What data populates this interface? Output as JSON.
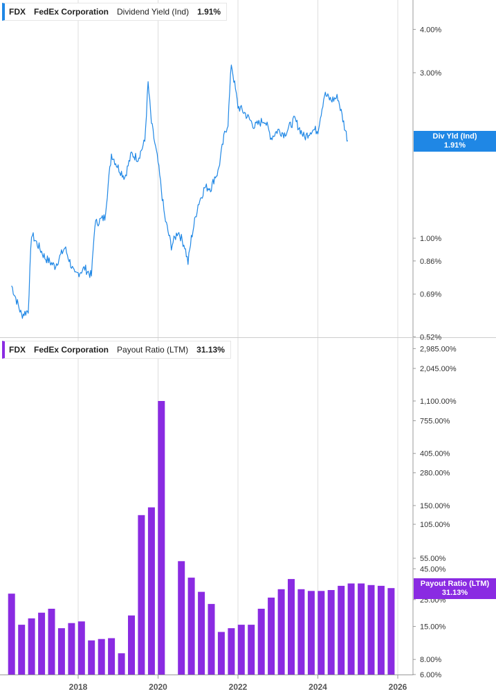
{
  "colors": {
    "line": "#1f87e5",
    "bar": "#8a2be2",
    "axis": "#999999",
    "grid": "#dddddd"
  },
  "top_panel": {
    "legend": {
      "ticker": "FDX",
      "company": "FedEx Corporation",
      "metric": "Dividend Yield (Ind)",
      "value": "1.91%"
    },
    "badge": {
      "label": "Div Yld (Ind)",
      "value": "1.91%"
    }
  },
  "bottom_panel": {
    "legend": {
      "ticker": "FDX",
      "company": "FedEx Corporation",
      "metric": "Payout Ratio (LTM)",
      "value": "31.13%"
    },
    "badge": {
      "label": "Payout Ratio (LTM)",
      "value": "31.13%"
    }
  },
  "chart_data": [
    {
      "type": "line",
      "title": "FDX FedEx Corporation Dividend Yield (Ind)",
      "scale": "log",
      "ylim": [
        0.52,
        5.0
      ],
      "y_ticks": [
        {
          "value": 4.0,
          "label": "4.00%"
        },
        {
          "value": 3.0,
          "label": "3.00%"
        },
        {
          "value": 1.0,
          "label": "1.00%"
        },
        {
          "value": 0.86,
          "label": "0.86%"
        },
        {
          "value": 0.69,
          "label": "0.69%"
        },
        {
          "value": 0.52,
          "label": "0.52%"
        }
      ],
      "xlim": [
        "2016-05",
        "2026-05"
      ],
      "x_ticks": [
        "2018",
        "2020",
        "2022",
        "2024",
        "2026"
      ],
      "series": [
        {
          "name": "Dividend Yield (Ind)",
          "points": [
            [
              "2016-05",
              0.73
            ],
            [
              "2016-08",
              0.6
            ],
            [
              "2016-10",
              0.62
            ],
            [
              "2016-11",
              1.03
            ],
            [
              "2017-03",
              0.88
            ],
            [
              "2017-06",
              0.83
            ],
            [
              "2017-09",
              0.94
            ],
            [
              "2017-12",
              0.78
            ],
            [
              "2018-03",
              0.82
            ],
            [
              "2018-05",
              0.78
            ],
            [
              "2018-06",
              1.1
            ],
            [
              "2018-09",
              1.15
            ],
            [
              "2018-11",
              1.75
            ],
            [
              "2019-01",
              1.6
            ],
            [
              "2019-03",
              1.5
            ],
            [
              "2019-05",
              1.75
            ],
            [
              "2019-07",
              1.7
            ],
            [
              "2019-09",
              1.9
            ],
            [
              "2019-10",
              2.8
            ],
            [
              "2019-11",
              2.15
            ],
            [
              "2020-01",
              1.65
            ],
            [
              "2020-03",
              1.15
            ],
            [
              "2020-05",
              0.95
            ],
            [
              "2020-07",
              1.05
            ],
            [
              "2020-09",
              0.95
            ],
            [
              "2020-10",
              0.85
            ],
            [
              "2020-11",
              1.0
            ],
            [
              "2021-01",
              1.25
            ],
            [
              "2021-03",
              1.4
            ],
            [
              "2021-05",
              1.4
            ],
            [
              "2021-06",
              1.5
            ],
            [
              "2021-07",
              1.55
            ],
            [
              "2021-09",
              2.0
            ],
            [
              "2021-10",
              2.15
            ],
            [
              "2021-11",
              3.2
            ],
            [
              "2022-01",
              2.4
            ],
            [
              "2022-03",
              2.3
            ],
            [
              "2022-06",
              2.1
            ],
            [
              "2022-09",
              2.2
            ],
            [
              "2022-11",
              1.95
            ],
            [
              "2023-01",
              2.05
            ],
            [
              "2023-03",
              2.0
            ],
            [
              "2023-06",
              2.2
            ],
            [
              "2023-09",
              1.95
            ],
            [
              "2023-11",
              2.05
            ],
            [
              "2024-01",
              2.05
            ],
            [
              "2024-03",
              2.6
            ],
            [
              "2024-05",
              2.5
            ],
            [
              "2024-07",
              2.55
            ],
            [
              "2024-09",
              2.1
            ],
            [
              "2024-10",
              1.91
            ]
          ]
        }
      ]
    },
    {
      "type": "bar",
      "title": "FDX FedEx Corporation Payout Ratio (LTM)",
      "scale": "log",
      "ylim": [
        6.0,
        3500.0
      ],
      "y_ticks": [
        {
          "value": 2985.0,
          "label": "2,985.00%"
        },
        {
          "value": 2045.0,
          "label": "2,045.00%"
        },
        {
          "value": 1100.0,
          "label": "1,100.00%"
        },
        {
          "value": 755.0,
          "label": "755.00%"
        },
        {
          "value": 405.0,
          "label": "405.00%"
        },
        {
          "value": 280.0,
          "label": "280.00%"
        },
        {
          "value": 150.0,
          "label": "150.00%"
        },
        {
          "value": 105.0,
          "label": "105.00%"
        },
        {
          "value": 55.0,
          "label": "55.00%"
        },
        {
          "value": 45.0,
          "label": "45.00%"
        },
        {
          "value": 25.0,
          "label": "25.00%"
        },
        {
          "value": 15.0,
          "label": "15.00%"
        },
        {
          "value": 8.0,
          "label": "8.00%"
        },
        {
          "value": 6.0,
          "label": "6.00%"
        }
      ],
      "x_ticks": [
        "2018",
        "2020",
        "2022",
        "2024",
        "2026"
      ],
      "series": [
        {
          "name": "Payout Ratio (LTM)",
          "points": [
            [
              "2016-05",
              28.0
            ],
            [
              "2016-08",
              15.5
            ],
            [
              "2016-11",
              17.5
            ],
            [
              "2017-02",
              19.5
            ],
            [
              "2017-05",
              21.0
            ],
            [
              "2017-08",
              14.5
            ],
            [
              "2017-11",
              16.0
            ],
            [
              "2018-02",
              16.5
            ],
            [
              "2018-05",
              11.5
            ],
            [
              "2018-08",
              11.8
            ],
            [
              "2018-11",
              12.0
            ],
            [
              "2019-02",
              9.0
            ],
            [
              "2019-05",
              18.5
            ],
            [
              "2019-08",
              125.0
            ],
            [
              "2019-11",
              145.0
            ],
            [
              "2020-02",
              1100.0
            ],
            [
              "2020-05",
              null
            ],
            [
              "2020-08",
              52.0
            ],
            [
              "2020-11",
              38.0
            ],
            [
              "2021-02",
              29.0
            ],
            [
              "2021-05",
              23.0
            ],
            [
              "2021-08",
              13.5
            ],
            [
              "2021-11",
              14.5
            ],
            [
              "2022-02",
              15.5
            ],
            [
              "2022-05",
              15.5
            ],
            [
              "2022-08",
              21.0
            ],
            [
              "2022-11",
              26.0
            ],
            [
              "2023-02",
              30.5
            ],
            [
              "2023-05",
              37.0
            ],
            [
              "2023-08",
              30.5
            ],
            [
              "2023-11",
              29.5
            ],
            [
              "2024-02",
              29.5
            ],
            [
              "2024-05",
              30.0
            ],
            [
              "2024-08",
              32.5
            ],
            [
              "2024-11",
              34.0
            ],
            [
              "2025-02",
              34.0
            ],
            [
              "2025-05",
              33.0
            ],
            [
              "2025-08",
              32.5
            ],
            [
              "2025-11",
              31.13
            ]
          ]
        }
      ]
    }
  ]
}
